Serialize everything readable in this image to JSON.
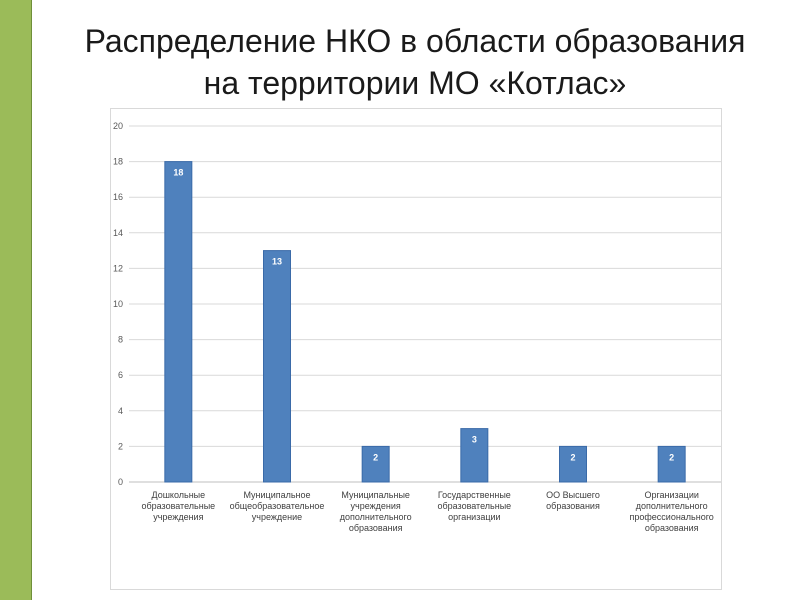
{
  "slide": {
    "title_line1": "Распределение НКО в области образования",
    "title_line2": "на территории МО «Котлас»",
    "accent_color": "#9bbb59"
  },
  "chart_data": {
    "type": "bar",
    "title": "",
    "xlabel": "",
    "ylabel": "",
    "ylim": [
      0,
      20
    ],
    "ytick_step": 2,
    "grid": true,
    "legend": "none",
    "bar_color": "#4f81bd",
    "categories": [
      [
        "Дошкольные",
        "образовательные",
        "учреждения"
      ],
      [
        "Муниципальное",
        "общеобразовательное",
        "учреждение"
      ],
      [
        "Муниципальные",
        "учреждения",
        "дополнительного",
        "образования"
      ],
      [
        "Государственные",
        "образовательные",
        "организации"
      ],
      [
        "ОО Высшего",
        "образования"
      ],
      [
        "Организации",
        "дополнительного",
        "профессионального",
        "образования"
      ]
    ],
    "values": [
      18,
      13,
      2,
      3,
      2,
      2
    ]
  }
}
